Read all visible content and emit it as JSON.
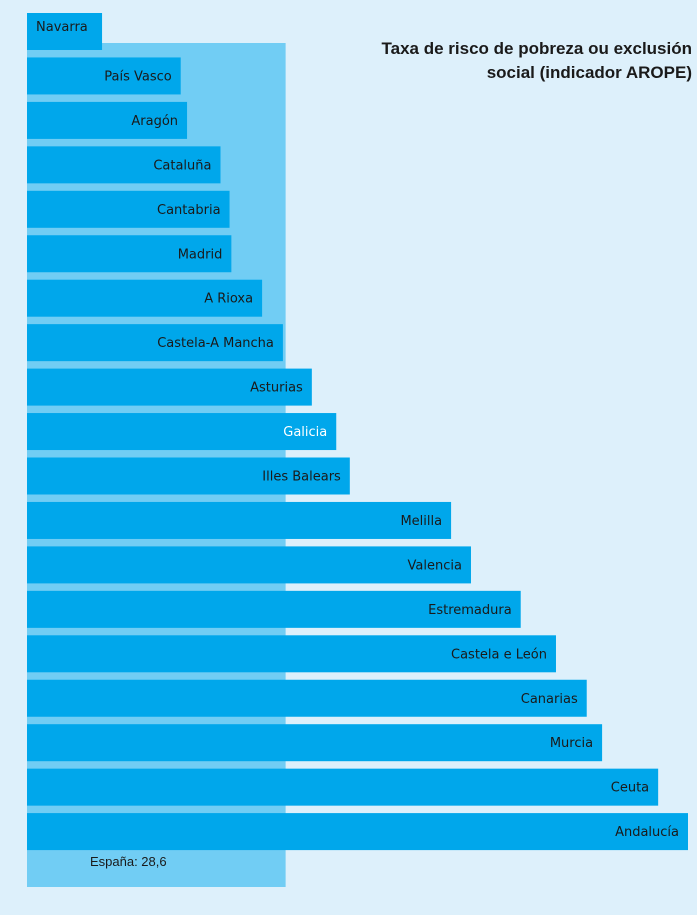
{
  "chart_data": {
    "type": "bar",
    "orientation": "horizontal",
    "title_lines": [
      "Taxa de risco de pobreza ou exclusión",
      "social (indicador AROPE)"
    ],
    "categories": [
      "Navarra",
      "País Vasco",
      "Aragón",
      "Cataluña",
      "Cantabria",
      "Madrid",
      "A Rioxa",
      "Castela-A Mancha",
      "Asturias",
      "Galicia",
      "Illes Balears",
      "Melilla",
      "Valencia",
      "Estremadura",
      "Castela e León",
      "Canarias",
      "Murcia",
      "Ceuta",
      "Andalucía"
    ],
    "values": [
      8.3,
      17.0,
      17.7,
      21.4,
      22.4,
      22.6,
      26.0,
      28.3,
      31.5,
      34.2,
      35.7,
      46.9,
      49.1,
      54.6,
      58.5,
      61.9,
      63.6,
      69.8,
      73.1
    ],
    "reference": {
      "label": "España:  28,6",
      "value": 28.6
    },
    "xlim": [
      0,
      73.1
    ],
    "colors": {
      "bar": "#00a7eb",
      "reference_band": "#71cdf4",
      "background": "#ddf0fb",
      "highlight_label": "#ffffff"
    },
    "highlight_category": "Galicia",
    "grid": false,
    "legend": "none"
  }
}
